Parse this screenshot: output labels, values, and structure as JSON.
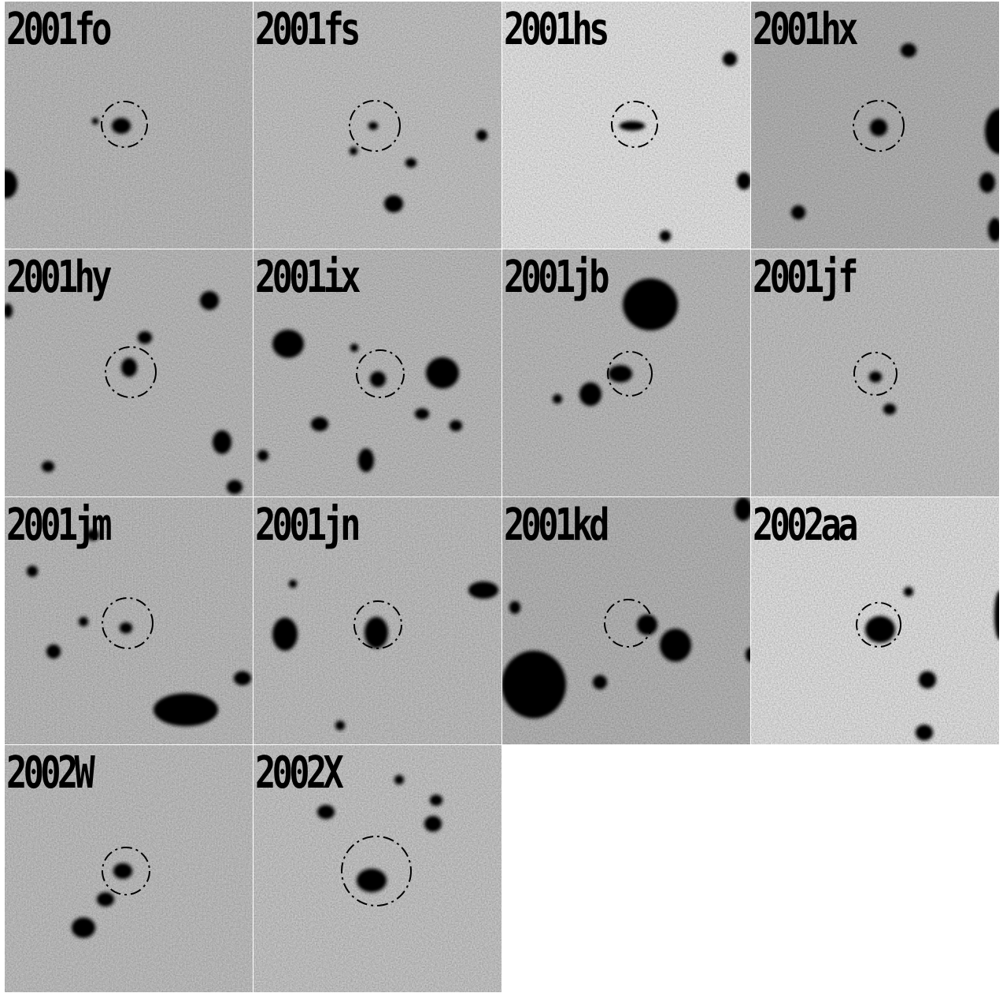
{
  "panels": [
    {
      "label": "2001fo"
    },
    {
      "label": "2001fs"
    },
    {
      "label": "2001hs"
    },
    {
      "label": "2001hx"
    },
    {
      "label": "2001hy"
    },
    {
      "label": "2001ix"
    },
    {
      "label": "2001jb"
    },
    {
      "label": "2001jf"
    },
    {
      "label": "2001jm"
    },
    {
      "label": "2001jn"
    },
    {
      "label": "2001kd"
    },
    {
      "label": "2002aa"
    },
    {
      "label": "2002W"
    },
    {
      "label": "2002X"
    }
  ],
  "colors": {
    "background": "#ffffff",
    "sky": "#bdbdbd",
    "sky_light": "#e2e2e2",
    "source": "#000000",
    "marker": "#000000"
  }
}
